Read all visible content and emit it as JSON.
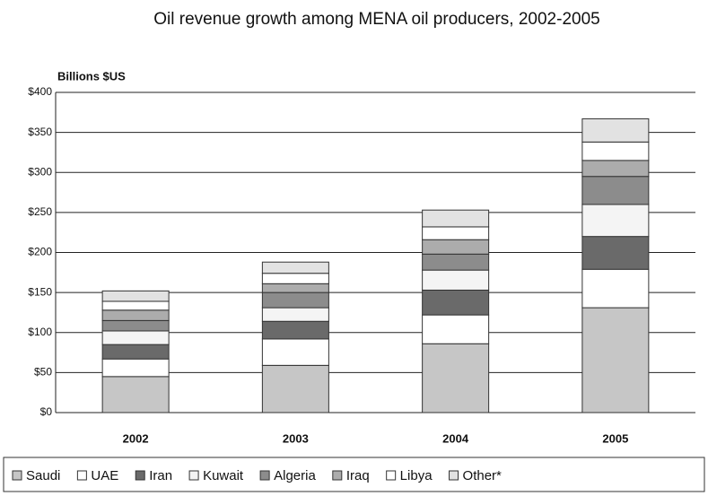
{
  "chart_data": {
    "type": "stacked_bar",
    "title": "Oil revenue growth among MENA oil producers, 2002-2005",
    "y_label": "Billions $US",
    "categories": [
      "2002",
      "2003",
      "2004",
      "2005"
    ],
    "series": [
      {
        "name": "Saudi",
        "color": "#c6c6c6",
        "values": [
          45,
          59,
          86,
          131
        ]
      },
      {
        "name": "UAE",
        "color": "#ffffff",
        "values": [
          22,
          33,
          36,
          48
        ]
      },
      {
        "name": "Iran",
        "color": "#6a6a6a",
        "values": [
          18,
          22,
          31,
          41
        ]
      },
      {
        "name": "Kuwait",
        "color": "#f4f4f4",
        "values": [
          17,
          17,
          25,
          40
        ]
      },
      {
        "name": "Algeria",
        "color": "#8c8c8c",
        "values": [
          13,
          19,
          20,
          35
        ]
      },
      {
        "name": "Iraq",
        "color": "#acacac",
        "values": [
          13,
          11,
          18,
          20
        ]
      },
      {
        "name": "Libya",
        "color": "#ffffff",
        "values": [
          11,
          13,
          16,
          23
        ]
      },
      {
        "name": "Other*",
        "color": "#e2e2e2",
        "values": [
          13,
          14,
          21,
          29
        ]
      }
    ],
    "ylim": [
      0,
      400
    ],
    "yticks": [
      {
        "value": 0,
        "label": "$0"
      },
      {
        "value": 50,
        "label": "$50"
      },
      {
        "value": 100,
        "label": "$100"
      },
      {
        "value": 150,
        "label": "$150"
      },
      {
        "value": 200,
        "label": "$200"
      },
      {
        "value": 250,
        "label": "$250"
      },
      {
        "value": 300,
        "label": "$300"
      },
      {
        "value": 350,
        "label": "$350"
      },
      {
        "value": 400,
        "label": "$400"
      }
    ],
    "grid": true
  }
}
